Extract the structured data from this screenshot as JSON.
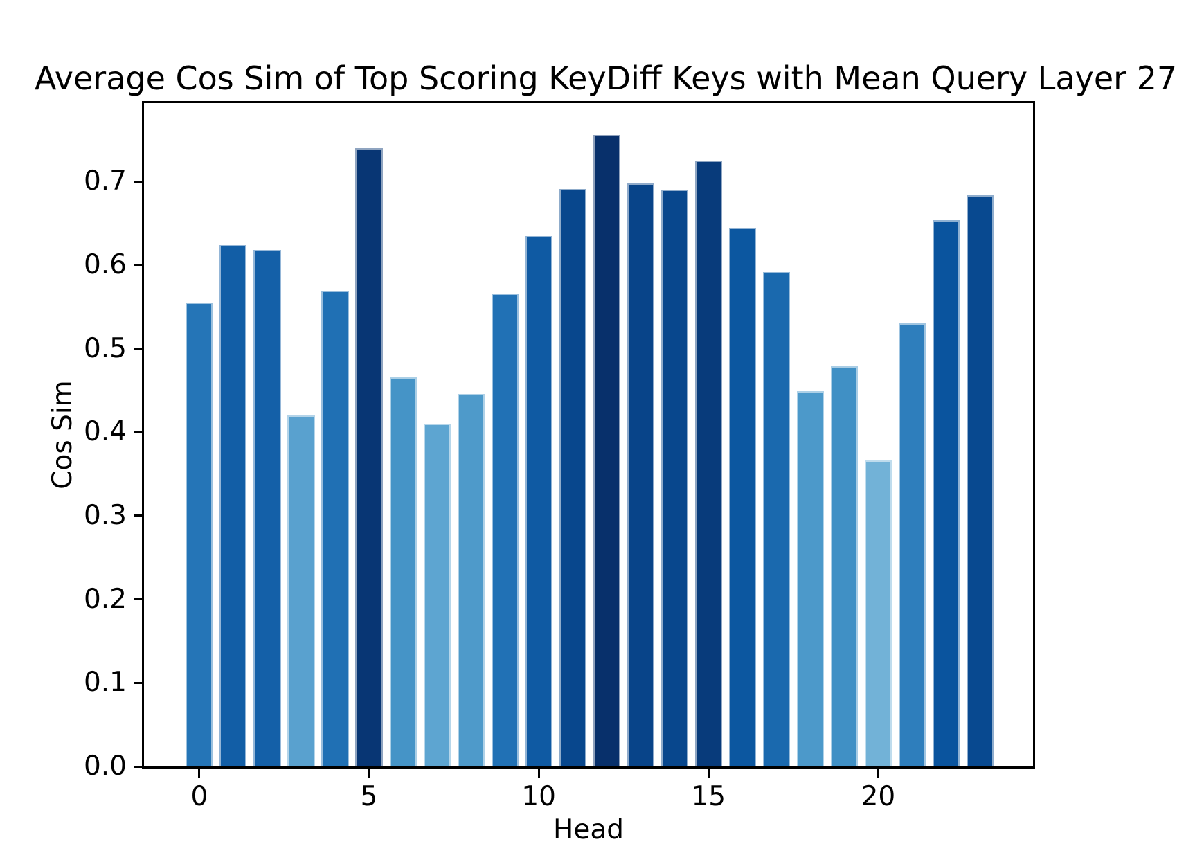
{
  "title": "Average Cos Sim of Top Scoring KeyDiff Keys with Mean Query Layer 27",
  "axes": {
    "x_label": "Head",
    "y_label": "Cos Sim",
    "x_ticks": [
      0,
      5,
      10,
      15,
      20
    ],
    "y_ticks": [
      "0.0",
      "0.1",
      "0.2",
      "0.3",
      "0.4",
      "0.5",
      "0.6",
      "0.7"
    ]
  },
  "chart_data": {
    "type": "bar",
    "title": "Average Cos Sim of Top Scoring KeyDiff Keys with Mean Query Layer 27",
    "xlabel": "Head",
    "ylabel": "Cos Sim",
    "categories": [
      0,
      1,
      2,
      3,
      4,
      5,
      6,
      7,
      8,
      9,
      10,
      11,
      12,
      13,
      14,
      15,
      16,
      17,
      18,
      19,
      20,
      21,
      22,
      23
    ],
    "values": [
      0.555,
      0.624,
      0.618,
      0.42,
      0.569,
      0.74,
      0.466,
      0.41,
      0.446,
      0.566,
      0.635,
      0.691,
      0.756,
      0.698,
      0.69,
      0.725,
      0.645,
      0.592,
      0.449,
      0.479,
      0.366,
      0.53,
      0.654,
      0.684
    ],
    "bar_colors": [
      "#2575b7",
      "#125ea6",
      "#1460a8",
      "#59a1cf",
      "#2070b4",
      "#083674",
      "#4594c7",
      "#5da5d1",
      "#4e9aca",
      "#2171b5",
      "#0f5aa3",
      "#08478d",
      "#08306b",
      "#084489",
      "#08478d",
      "#083b7b",
      "#0c57a0",
      "#1a69ae",
      "#4c99ca",
      "#4090c5",
      "#72b2d7",
      "#2e7ebc",
      "#0a549e",
      "#084990"
    ],
    "bar_edge_color": "rgba(255,255,255,0.55)",
    "bar_width_fraction": 0.8,
    "xlim": [
      -1.63,
      24.56
    ],
    "ylim": [
      0,
      0.7938
    ],
    "grid": false,
    "legend": null,
    "colormap_note": "Blues shading scales with bar value (light = low, dark navy = high)"
  }
}
